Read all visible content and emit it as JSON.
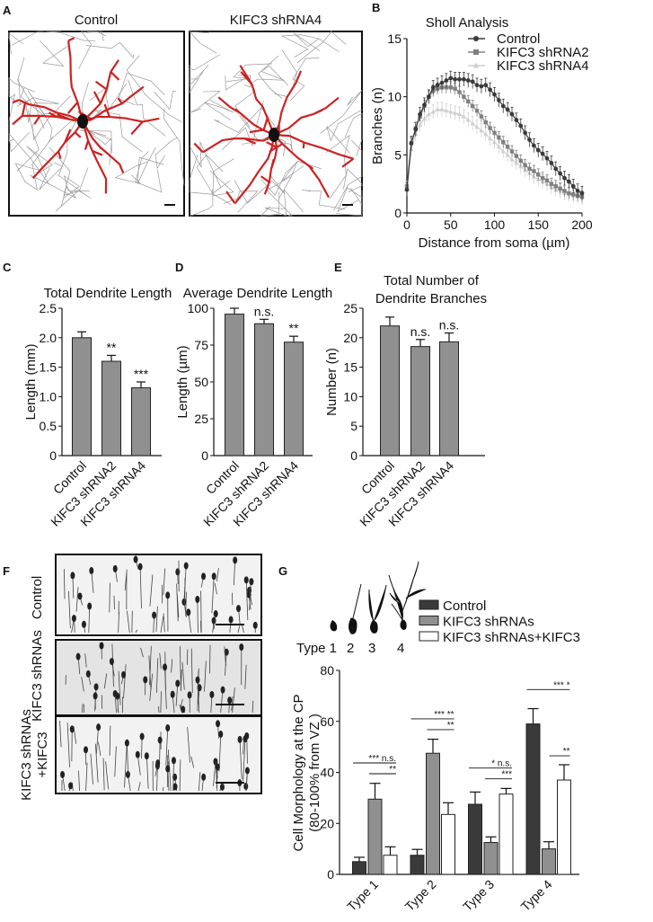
{
  "panels": {
    "A": {
      "letter": "A",
      "image_labels": [
        "Control",
        "KIFC3 shRNA4"
      ]
    },
    "F": {
      "letter": "F",
      "image_labels": [
        "Control",
        "KIFC3 shRNAs",
        "KIFC3 shRNAs\n+KIFC3"
      ]
    },
    "G_schematic": {
      "labels": [
        "Type 1",
        "2",
        "3",
        "4"
      ]
    }
  },
  "colors": {
    "control": "#3a3a3a",
    "shrna2": "#808080",
    "shrna4": "#cfcfcf",
    "bar": "#909090",
    "trace": "#cc2222",
    "rescue": "#ffffff"
  },
  "chart_data": [
    {
      "panel": "B",
      "type": "line",
      "title": "Sholl Analysis",
      "xlabel": "Distance from soma (µm)",
      "ylabel": "Branches (n)",
      "xlim": [
        0,
        200
      ],
      "ylim": [
        0,
        15
      ],
      "xticks": [
        0,
        50,
        100,
        150,
        200
      ],
      "yticks": [
        0,
        5,
        10,
        15
      ],
      "legend": "top-right",
      "x": [
        0,
        5,
        10,
        15,
        20,
        25,
        30,
        35,
        40,
        45,
        50,
        55,
        60,
        65,
        70,
        75,
        80,
        85,
        90,
        95,
        100,
        105,
        110,
        115,
        120,
        125,
        130,
        135,
        140,
        145,
        150,
        155,
        160,
        165,
        170,
        175,
        180,
        185,
        190,
        195,
        200
      ],
      "series": [
        {
          "name": "Control",
          "marker": "circle",
          "values": [
            2,
            6,
            7.2,
            8.5,
            9.3,
            10,
            10.8,
            11,
            11.2,
            11.4,
            11.6,
            11.5,
            11.5,
            11.5,
            11.4,
            11.3,
            11,
            10.9,
            11,
            10.6,
            10.2,
            9.7,
            9.2,
            8.9,
            8.5,
            8,
            7.5,
            6.9,
            6.3,
            5.8,
            5.4,
            5.1,
            4.7,
            4.3,
            3.8,
            3.4,
            3,
            2.7,
            2.3,
            1.9,
            1.7
          ],
          "error": 0.6
        },
        {
          "name": "KIFC3 shRNA2",
          "marker": "square",
          "values": [
            2.3,
            6,
            7.3,
            8.3,
            9.2,
            10,
            10.5,
            10.7,
            10.8,
            10.8,
            10.8,
            10.7,
            10.4,
            10,
            9.6,
            9.2,
            8.8,
            8.3,
            7.8,
            7.3,
            6.9,
            6.5,
            6.1,
            5.7,
            5.3,
            4.9,
            4.5,
            4.1,
            3.8,
            3.6,
            3.3,
            3,
            2.8,
            2.5,
            2.3,
            2.1,
            1.9,
            1.7,
            1.6,
            1.5,
            1.4
          ],
          "error": 0.5
        },
        {
          "name": "KIFC3 shRNA4",
          "marker": "triangle",
          "values": [
            2.1,
            5.5,
            6.8,
            7.6,
            8.1,
            8.5,
            8.7,
            8.9,
            8.9,
            8.8,
            8.7,
            8.6,
            8.5,
            8.3,
            8,
            7.7,
            7.4,
            7.1,
            6.8,
            6.4,
            6.1,
            5.7,
            5.3,
            5,
            4.6,
            4.3,
            4,
            3.7,
            3.4,
            3.1,
            2.9,
            2.7,
            2.5,
            2.2,
            2,
            1.9,
            1.7,
            1.6,
            1.5,
            1.4,
            1.3
          ],
          "error": 0.6
        }
      ]
    },
    {
      "panel": "C",
      "type": "bar",
      "title": "Total Dendrite Length",
      "xlabel": "",
      "ylabel": "Length (mm)",
      "ylim": [
        0,
        2.5
      ],
      "yticks": [
        "0",
        "0.5",
        "1.0",
        "1.5",
        "2.0",
        "2.5"
      ],
      "categories": [
        "Control",
        "KIFC3 shRNA2",
        "KIFC3 shRNA4"
      ],
      "values": [
        2.0,
        1.6,
        1.15
      ],
      "errors": [
        0.1,
        0.1,
        0.1
      ],
      "significance": [
        "",
        "**",
        "***"
      ]
    },
    {
      "panel": "D",
      "type": "bar",
      "title": "Average Dendrite Length",
      "xlabel": "",
      "ylabel": "Length (µm)",
      "ylim": [
        0,
        100
      ],
      "yticks": [
        "0",
        "25",
        "50",
        "75",
        "100"
      ],
      "categories": [
        "Control",
        "KIFC3 shRNA2",
        "KIFC3 shRNA4"
      ],
      "values": [
        96,
        89.5,
        77
      ],
      "errors": [
        4,
        3,
        4
      ],
      "significance": [
        "",
        "n.s.",
        "**"
      ]
    },
    {
      "panel": "E",
      "type": "bar",
      "title": "Total Number of\nDendrite Branches",
      "xlabel": "",
      "ylabel": "Number (n)",
      "ylim": [
        0,
        25
      ],
      "yticks": [
        "0",
        "5",
        "10",
        "15",
        "20",
        "25"
      ],
      "categories": [
        "Control",
        "KIFC3 shRNA2",
        "KIFC3 shRNA4"
      ],
      "values": [
        22,
        18.5,
        19.3
      ],
      "errors": [
        1.5,
        1.2,
        1.5
      ],
      "significance": [
        "",
        "n.s.",
        "n.s."
      ]
    },
    {
      "panel": "G",
      "type": "bar",
      "title": "",
      "xlabel": "",
      "ylabel": "Cell Morphology at the CP\n(80-100% from VZ )",
      "ylim": [
        0,
        80
      ],
      "yticks": [
        "0",
        "20",
        "40",
        "60",
        "80"
      ],
      "legend": "top-right",
      "categories": [
        "Type 1",
        "Type 2",
        "Type 3",
        "Type 4"
      ],
      "series": [
        {
          "name": "Control",
          "values": [
            5,
            7.5,
            27.5,
            59
          ],
          "errors": [
            1.7,
            2.3,
            4.8,
            6
          ]
        },
        {
          "name": "KIFC3 shRNAs",
          "values": [
            29.5,
            47.5,
            12.5,
            10
          ],
          "errors": [
            6.2,
            5.5,
            2.2,
            2.8
          ]
        },
        {
          "name": "KIFC3 shRNAs+KIFC3",
          "values": [
            7.5,
            23.5,
            31.5,
            37
          ],
          "errors": [
            3.3,
            4.6,
            2.2,
            6
          ]
        }
      ],
      "comparisons": [
        {
          "long": "*** n.s.",
          "short": "**"
        },
        {
          "long": "*** **",
          "short": "**"
        },
        {
          "long": "*  n.s.",
          "short": "***"
        },
        {
          "long": "***  *",
          "short": "**"
        }
      ]
    }
  ]
}
